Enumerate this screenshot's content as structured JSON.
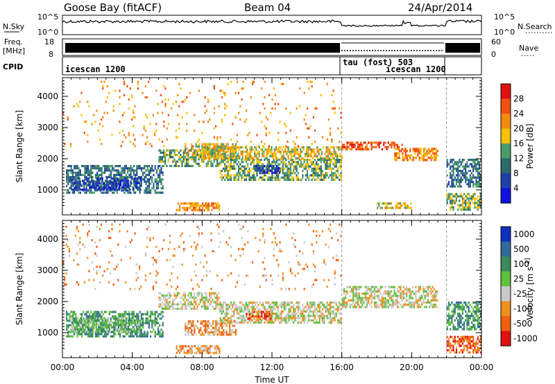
{
  "header": {
    "station": "Goose Bay (fitACF)",
    "beam": "Beam 04",
    "date": "24/Apr/2014"
  },
  "noise_panel": {
    "left_label": "N.Sky",
    "right_label": "N.Search",
    "ticks_left": [
      "10^5",
      "10^0"
    ],
    "ticks_right": [
      "10^5",
      "10^0"
    ]
  },
  "freq_panel": {
    "left_label_line1": "Freq.",
    "left_label_line2": "[MHz]",
    "right_label": "Nave",
    "ticks_left": [
      "18",
      "8"
    ],
    "ticks_right": [
      "60",
      "0"
    ]
  },
  "cpid_panel": {
    "label": "CPID",
    "modes": [
      {
        "text": "icescan 1200",
        "start_h": 0,
        "end_h": 16
      },
      {
        "text": "tau (fost) 503",
        "start_h": 16,
        "end_h": 22
      },
      {
        "text": "icescan 1200",
        "start_h": 18.5,
        "end_h": 22
      }
    ],
    "transitions_h": [
      16,
      22
    ]
  },
  "chart_data": [
    {
      "type": "heatmap",
      "name": "Power",
      "ylabel": "Slant Range [km]",
      "yticks": [
        1000,
        2000,
        3000,
        4000
      ],
      "ylim": [
        200,
        4600
      ],
      "colorbar": {
        "label": "Power [dB]",
        "ticks": [
          "28",
          "24",
          "20",
          "16",
          "12",
          "8",
          "4"
        ],
        "colors": [
          "#e01010",
          "#f05010",
          "#f58a10",
          "#f5c000",
          "#4a9a6a",
          "#2a6a6a",
          "#2040a8",
          "#1010e0"
        ]
      },
      "regions": [
        {
          "t0": 0.2,
          "t1": 5.8,
          "r0": 850,
          "r1": 1800,
          "level": 5
        },
        {
          "t0": 0.5,
          "t1": 4.5,
          "r0": 950,
          "r1": 1400,
          "level": 6
        },
        {
          "t0": 5.5,
          "t1": 9,
          "r0": 1700,
          "r1": 2300,
          "level": 4
        },
        {
          "t0": 7,
          "t1": 10,
          "r0": 2000,
          "r1": 2500,
          "level": 3
        },
        {
          "t0": 9,
          "t1": 16,
          "r0": 1300,
          "r1": 2000,
          "level": 4
        },
        {
          "t0": 11,
          "t1": 12.5,
          "r0": 1500,
          "r1": 1800,
          "level": 6
        },
        {
          "t0": 8,
          "t1": 16,
          "r0": 2000,
          "r1": 2400,
          "level": 3
        },
        {
          "t0": 6.5,
          "t1": 9,
          "r0": 350,
          "r1": 600,
          "level": 2
        },
        {
          "t0": 16,
          "t1": 19.5,
          "r0": 2250,
          "r1": 2550,
          "level": 1
        },
        {
          "t0": 19,
          "t1": 21.5,
          "r0": 1900,
          "r1": 2350,
          "level": 2
        },
        {
          "t0": 22,
          "t1": 24,
          "r0": 1100,
          "r1": 2000,
          "level": 5
        },
        {
          "t0": 22,
          "t1": 24,
          "r0": 300,
          "r1": 900,
          "level": 4
        },
        {
          "t0": 18,
          "t1": 20,
          "r0": 400,
          "r1": 600,
          "level": 3
        },
        {
          "t0": 0,
          "t1": 16,
          "r0": 2400,
          "r1": 4500,
          "level": 2,
          "sparse": 1
        }
      ]
    },
    {
      "type": "heatmap",
      "name": "Velocity",
      "ylabel": "Slant Range [km]",
      "yticks": [
        1000,
        2000,
        3000,
        4000
      ],
      "ylim": [
        200,
        4600
      ],
      "xlabel": "Time UT",
      "xticks": [
        "00:00",
        "04:00",
        "08:00",
        "12:00",
        "16:00",
        "20:00",
        "00:00"
      ],
      "xlim": [
        0,
        24
      ],
      "colorbar": {
        "label": "Velocity [m s^-1]",
        "ticks": [
          "1000",
          "500",
          "100",
          "25",
          "-25",
          "-100",
          "-500",
          "-1000"
        ],
        "colors": [
          "#1030c0",
          "#306a9a",
          "#3a8a5a",
          "#60c040",
          "#c8c8c8",
          "#f09020",
          "#f06010",
          "#e01010"
        ]
      },
      "regions": [
        {
          "t0": 0.2,
          "t1": 5.8,
          "r0": 850,
          "r1": 1700,
          "level": 2
        },
        {
          "t0": 0.5,
          "t1": 4.5,
          "r0": 1000,
          "r1": 1500,
          "level": 3
        },
        {
          "t0": 5.5,
          "t1": 9,
          "r0": 1700,
          "r1": 2300,
          "level": 4
        },
        {
          "t0": 9,
          "t1": 16,
          "r0": 1300,
          "r1": 2000,
          "level": 4
        },
        {
          "t0": 10.5,
          "t1": 12,
          "r0": 1400,
          "r1": 1700,
          "level": 6
        },
        {
          "t0": 7,
          "t1": 10,
          "r0": 900,
          "r1": 1400,
          "level": 5
        },
        {
          "t0": 6.5,
          "t1": 9,
          "r0": 350,
          "r1": 600,
          "level": 5
        },
        {
          "t0": 16,
          "t1": 21.5,
          "r0": 1800,
          "r1": 2500,
          "level": 4
        },
        {
          "t0": 22,
          "t1": 24,
          "r0": 1100,
          "r1": 2000,
          "level": 2
        },
        {
          "t0": 22,
          "t1": 24,
          "r0": 300,
          "r1": 900,
          "level": 6
        },
        {
          "t0": 0,
          "t1": 16,
          "r0": 2400,
          "r1": 4500,
          "level": 5,
          "sparse": 1
        }
      ]
    }
  ]
}
